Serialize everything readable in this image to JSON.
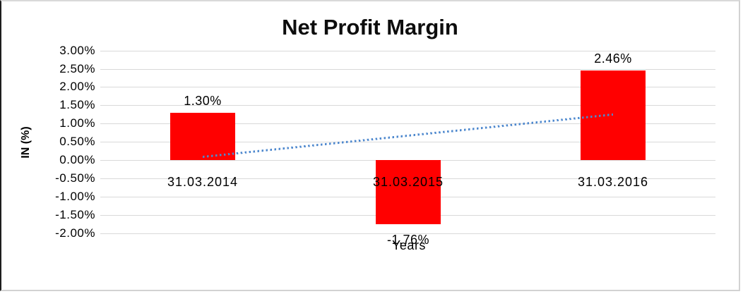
{
  "chart_data": {
    "type": "bar",
    "title": "Net Profit Margin",
    "xlabel": "Years",
    "ylabel": "IN (%)",
    "categories": [
      "31.03.2014",
      "31.03.2015",
      "31.03.2016"
    ],
    "series": [
      {
        "name": "Net Profit Margin",
        "values": [
          1.3,
          -1.76,
          2.46
        ]
      }
    ],
    "data_labels": [
      "1.30%",
      "-1.76%",
      "2.46%"
    ],
    "yticks": [
      {
        "value": 3.0,
        "label": "3.00%"
      },
      {
        "value": 2.5,
        "label": "2.50%"
      },
      {
        "value": 2.0,
        "label": "2.00%"
      },
      {
        "value": 1.5,
        "label": "1.50%"
      },
      {
        "value": 1.0,
        "label": "1.00%"
      },
      {
        "value": 0.5,
        "label": "0.50%"
      },
      {
        "value": 0.0,
        "label": "0.00%"
      },
      {
        "value": -0.5,
        "label": "-0.50%"
      },
      {
        "value": -1.0,
        "label": "-1.00%"
      },
      {
        "value": -1.5,
        "label": "-1.50%"
      },
      {
        "value": -2.0,
        "label": "-2.00%"
      }
    ],
    "ylim": [
      -2.0,
      3.0
    ],
    "grid": true,
    "legend": "none",
    "colors": {
      "bar": "#ff0000",
      "gridline": "#d9d9d9",
      "trendline": "#4e88ce",
      "text": "#000000"
    },
    "trendline": {
      "type": "linear",
      "style": "dotted",
      "start_value": 0.09,
      "end_value": 1.25
    }
  }
}
